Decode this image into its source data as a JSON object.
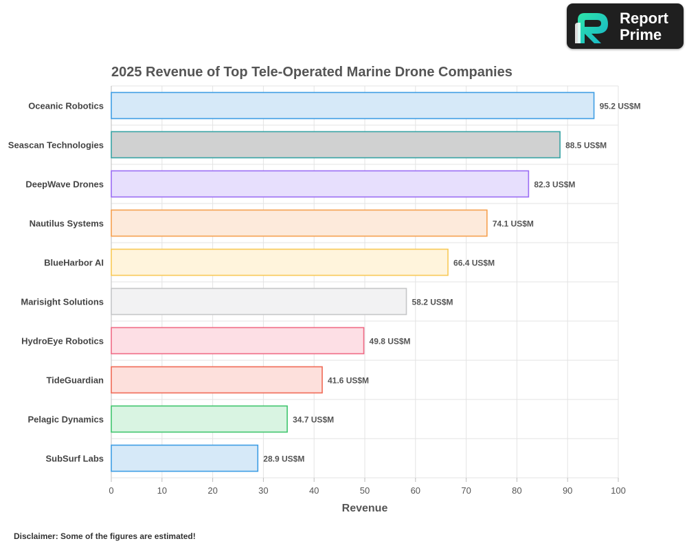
{
  "brand": {
    "line1": "Report",
    "line2": "Prime"
  },
  "disclaimer": "Disclaimer: Some of the figures are estimated!",
  "chart_data": {
    "type": "bar",
    "orientation": "horizontal",
    "title": "2025 Revenue of Top Tele-Operated Marine Drone Companies",
    "xlabel": "Revenue",
    "ylabel": "",
    "xlim": [
      0,
      100
    ],
    "xticks": [
      0,
      10,
      20,
      30,
      40,
      50,
      60,
      70,
      80,
      90,
      100
    ],
    "grid": true,
    "value_suffix": " US$M",
    "categories": [
      "Oceanic Robotics",
      "Seascan Technologies",
      "DeepWave Drones",
      "Nautilus Systems",
      "BlueHarbor AI",
      "Marisight Solutions",
      "HydroEye Robotics",
      "TideGuardian",
      "Pelagic Dynamics",
      "SubSurf Labs"
    ],
    "values": [
      95.2,
      88.5,
      82.3,
      74.1,
      66.4,
      58.2,
      49.8,
      41.6,
      34.7,
      28.9
    ],
    "bar_fill_colors": [
      "#d6e9f8",
      "#d0d1d1",
      "#e7dffd",
      "#fdeadb",
      "#fff4dc",
      "#f2f2f3",
      "#fddfe5",
      "#fde0dc",
      "#d9f4e2",
      "#d6e9f8"
    ],
    "bar_stroke_colors": [
      "#3d9de4",
      "#36a3a4",
      "#9a6cf4",
      "#f6a04e",
      "#f8c955",
      "#c5c6c8",
      "#f06a85",
      "#f06955",
      "#3fc56d",
      "#3d9de4"
    ]
  }
}
